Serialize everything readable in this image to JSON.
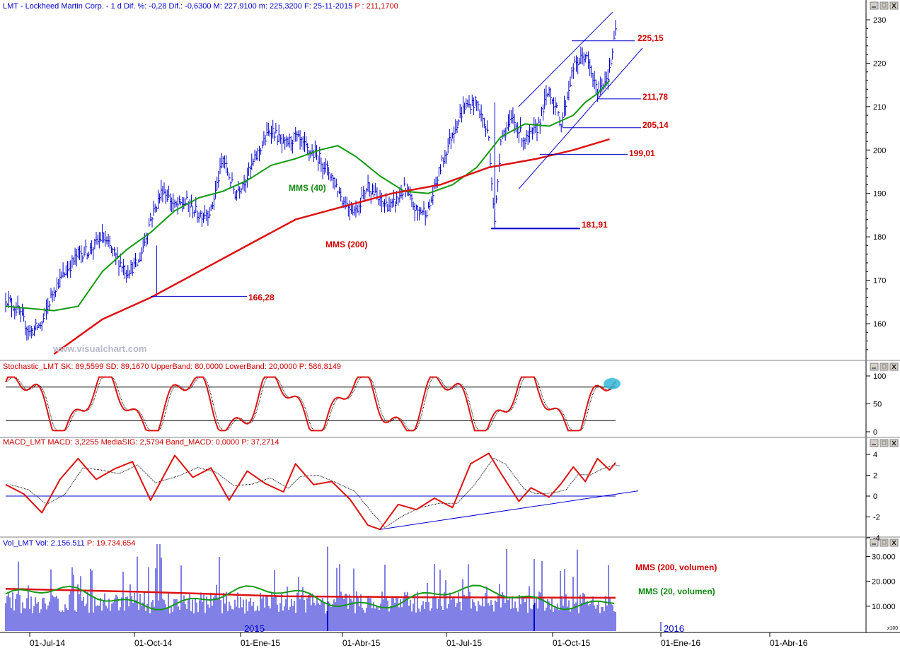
{
  "colors": {
    "price": "#0000cc",
    "ma_long": "#dd1111",
    "ma_short": "#119911",
    "text_red": "#cc0000",
    "text_green": "#118811",
    "ref_line": "#000000",
    "watermark": "#b8b8cc",
    "highlight": "#33b8d8"
  },
  "panes": {
    "price": {
      "header": "LMT - Lockheed Martin Corp. - 1 d Dif. %: -0,28 Dif.: -0,6300 M: 227,9100 m: 225,3200 F: 25-11-2015",
      "header_last": "P : 211,1700",
      "yticks": [
        "230",
        "220",
        "210",
        "200",
        "190",
        "180",
        "170",
        "160"
      ],
      "levels": [
        "225,15",
        "211,78",
        "205,14",
        "199,01",
        "181,91",
        "166,28"
      ],
      "ma_short_label": "MMS (40)",
      "ma_long_label": "MMS (200)",
      "watermark": "www.visualchart.com"
    },
    "stochastic": {
      "header": "Stochastic_LMT SK: 89,5599 SD: 89,1670 UpperBand: 80,0000 LowerBand: 20,0000",
      "header_last": "P: 586,8149",
      "yticks": [
        "100",
        "50",
        "0"
      ]
    },
    "macd": {
      "header": "MACD_LMT MACD: 3,2255 MediaSIG: 2,5794 Band_MACD: 0,0000",
      "header_last": "P: 37,2714",
      "yticks": [
        "4",
        "2",
        "0",
        "-2",
        "-4"
      ]
    },
    "volume": {
      "header": "Vol_LMT Vol: 2.156.511",
      "header_last": "P: 19.734.654",
      "yticks": [
        "30.000",
        "20.000",
        "10.000"
      ],
      "ma_long_label": "MMS (200, volumen)",
      "ma_short_label": "MMS (20, volumen)",
      "unit": "x100",
      "year_labels": [
        "2015",
        "2016"
      ]
    }
  },
  "xaxis": {
    "labels": [
      "01-Jul-14",
      "01-Oct-14",
      "01-Ene-15",
      "01-Abr-15",
      "01-Jul-15",
      "01-Oct-15",
      "01-Ene-16",
      "01-Abr-16"
    ]
  },
  "chart_data": [
    {
      "type": "line",
      "title": "LMT - Lockheed Martin Corp. - 1 d",
      "x": [
        "01-Jul-14",
        "01-Oct-14",
        "01-Ene-15",
        "01-Abr-15",
        "01-Jul-15",
        "01-Oct-15",
        "01-Ene-16",
        "01-Abr-16"
      ],
      "ylim": [
        152,
        231
      ],
      "price_path": [
        [
          0,
          166
        ],
        [
          2,
          163
        ],
        [
          4,
          158
        ],
        [
          6,
          160
        ],
        [
          8,
          168
        ],
        [
          10,
          172
        ],
        [
          12,
          176
        ],
        [
          14,
          177
        ],
        [
          16,
          180
        ],
        [
          18,
          176
        ],
        [
          20,
          172
        ],
        [
          22,
          174
        ],
        [
          24,
          184
        ],
        [
          26,
          191
        ],
        [
          28,
          187
        ],
        [
          30,
          188
        ],
        [
          32,
          185
        ],
        [
          34,
          186
        ],
        [
          36,
          198
        ],
        [
          38,
          190
        ],
        [
          40,
          194
        ],
        [
          42,
          200
        ],
        [
          44,
          205
        ],
        [
          46,
          201
        ],
        [
          48,
          203
        ],
        [
          50,
          200
        ],
        [
          52,
          198
        ],
        [
          54,
          194
        ],
        [
          56,
          188
        ],
        [
          58,
          186
        ],
        [
          60,
          192
        ],
        [
          62,
          188
        ],
        [
          64,
          187
        ],
        [
          66,
          191
        ],
        [
          68,
          186
        ],
        [
          70,
          186
        ],
        [
          72,
          196
        ],
        [
          74,
          204
        ],
        [
          76,
          210
        ],
        [
          78,
          211
        ],
        [
          79,
          207
        ],
        [
          80,
          203
        ],
        [
          81,
          183
        ],
        [
          82,
          203
        ],
        [
          84,
          207
        ],
        [
          86,
          202
        ],
        [
          88,
          205
        ],
        [
          90,
          214
        ],
        [
          92,
          206
        ],
        [
          94,
          219
        ],
        [
          96,
          222
        ],
        [
          98,
          213
        ],
        [
          100,
          218
        ],
        [
          101,
          227
        ]
      ],
      "series": [
        {
          "name": "MMS (40)",
          "path": [
            [
              0,
              164
            ],
            [
              4,
              163.5
            ],
            [
              8,
              163
            ],
            [
              12,
              164
            ],
            [
              16,
              172
            ],
            [
              20,
              177
            ],
            [
              24,
              181
            ],
            [
              28,
              186
            ],
            [
              32,
              189
            ],
            [
              36,
              190.5
            ],
            [
              40,
              193
            ],
            [
              44,
              196.5
            ],
            [
              48,
              198
            ],
            [
              52,
              200
            ],
            [
              55,
              201
            ],
            [
              58,
              198.5
            ],
            [
              62,
              194
            ],
            [
              66,
              190.5
            ],
            [
              70,
              190
            ],
            [
              74,
              192
            ],
            [
              78,
              196
            ],
            [
              82,
              203
            ],
            [
              86,
              206
            ],
            [
              90,
              205.5
            ],
            [
              94,
              208
            ],
            [
              96,
              211
            ],
            [
              98,
              213
            ],
            [
              100,
              216
            ]
          ]
        },
        {
          "name": "MMS (200)",
          "path": [
            [
              8,
              153
            ],
            [
              16,
              161
            ],
            [
              24,
              166
            ],
            [
              32,
              172
            ],
            [
              40,
              178
            ],
            [
              48,
              184
            ],
            [
              56,
              187
            ],
            [
              64,
              190
            ],
            [
              72,
              192
            ],
            [
              80,
              196
            ],
            [
              88,
              198
            ],
            [
              94,
              200
            ],
            [
              100,
              202.5
            ]
          ]
        }
      ],
      "levels": [
        225.15,
        211.78,
        205.14,
        199.01,
        181.91,
        166.28
      ]
    },
    {
      "type": "line",
      "title": "Stochastic_LMT",
      "ylim": [
        0,
        100
      ],
      "bands": [
        80,
        20
      ],
      "series": [
        {
          "name": "SK",
          "last": 89.5599
        },
        {
          "name": "SD",
          "last": 89.167
        }
      ]
    },
    {
      "type": "line",
      "title": "MACD_LMT",
      "ylim": [
        -4,
        4
      ],
      "path": [
        [
          0,
          1.1
        ],
        [
          3,
          0.2
        ],
        [
          6,
          -1.6
        ],
        [
          9,
          1.6
        ],
        [
          12,
          3.6
        ],
        [
          15,
          1.6
        ],
        [
          18,
          2.6
        ],
        [
          21,
          3.3
        ],
        [
          24,
          -0.4
        ],
        [
          28,
          3.9
        ],
        [
          31,
          1.8
        ],
        [
          34,
          2.7
        ],
        [
          37,
          -0.4
        ],
        [
          40,
          2.4
        ],
        [
          43,
          1.2
        ],
        [
          46,
          0.4
        ],
        [
          48,
          3.1
        ],
        [
          51,
          1.1
        ],
        [
          54,
          1.4
        ],
        [
          57,
          -0.3
        ],
        [
          60,
          -2.8
        ],
        [
          62,
          -3.2
        ],
        [
          65,
          -0.8
        ],
        [
          68,
          -1.3
        ],
        [
          71,
          -0.2
        ],
        [
          74,
          -1.1
        ],
        [
          77,
          3.1
        ],
        [
          80,
          4.1
        ],
        [
          82,
          2.2
        ],
        [
          85,
          -0.5
        ],
        [
          87,
          0.8
        ],
        [
          90,
          -0.1
        ],
        [
          92,
          1.2
        ],
        [
          94,
          2.8
        ],
        [
          96,
          1.4
        ],
        [
          98,
          3.6
        ],
        [
          100,
          2.5
        ],
        [
          101,
          3.2
        ]
      ],
      "series": [
        {
          "name": "MACD",
          "last": 3.2255
        },
        {
          "name": "MediaSIG",
          "last": 2.5794
        }
      ],
      "trendline": [
        [
          62,
          -3.2
        ],
        [
          103,
          0.5
        ]
      ]
    },
    {
      "type": "bar",
      "title": "Vol_LMT",
      "ylim": [
        0,
        35000
      ],
      "last": 2156511,
      "series": [
        {
          "name": "MMS (200, volumen)",
          "level_start": 17000,
          "level_end": 13500
        },
        {
          "name": "MMS (20, volumen)"
        }
      ]
    }
  ]
}
